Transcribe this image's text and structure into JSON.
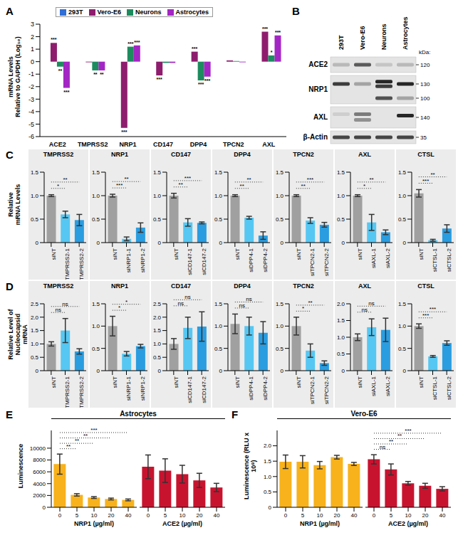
{
  "panel_labels": [
    "A",
    "B",
    "C",
    "D",
    "E",
    "F"
  ],
  "blot": {
    "lanes": [
      "293T",
      "Vero-E6",
      "Neurons",
      "Astrocytes"
    ],
    "unit": "kDa:",
    "rows": [
      {
        "label": "ACE2",
        "markers": [
          120
        ]
      },
      {
        "label": "NRP1",
        "markers": [
          130,
          100
        ]
      },
      {
        "label": "AXL",
        "markers": [
          140
        ]
      },
      {
        "label": "β-Actin",
        "markers": [
          35
        ]
      }
    ]
  },
  "chart_data": [
    {
      "type": "bar",
      "y_label": "mRNA Levels\nRelative to GAPDH (Log₁₀)",
      "legend": "top",
      "categories": [
        "ACE2",
        "TMPRSS2",
        "NRP1",
        "CD147",
        "DPP4",
        "TPCN2",
        "AXL"
      ],
      "ylim": [
        -6,
        3
      ],
      "yticks": [
        -6,
        -5,
        -4,
        -3,
        -2,
        -1,
        0,
        1,
        2,
        3
      ],
      "series": [
        {
          "name": "293T",
          "color": "#2f6fd6",
          "values": [
            0,
            0,
            0,
            0,
            0,
            0,
            0
          ],
          "significance": [
            null,
            null,
            null,
            null,
            null,
            null,
            null
          ]
        },
        {
          "name": "Vero-E6",
          "color": "#8e1d6e",
          "values": [
            1.5,
            -0.05,
            -5.3,
            -1.1,
            0.8,
            0.1,
            2.4
          ],
          "significance": [
            "***",
            null,
            "***",
            "***",
            "***",
            null,
            "***"
          ]
        },
        {
          "name": "Neurons",
          "color": "#1c8c5e",
          "values": [
            -0.4,
            -0.7,
            1.2,
            -0.1,
            -1.5,
            0.05,
            0.5
          ],
          "significance": [
            "**",
            "**",
            "***",
            null,
            "***",
            null,
            "*"
          ]
        },
        {
          "name": "Astrocytes",
          "color": "#a326c4",
          "values": [
            -2.1,
            -0.7,
            1.3,
            -0.1,
            -1.2,
            -0.05,
            2.1
          ],
          "significance": [
            "***",
            "**",
            "***",
            null,
            "***",
            null,
            "***"
          ]
        }
      ]
    },
    {
      "type": "bar",
      "title": "TMPRSS2",
      "y_label": "Relative\nmRNA Levels",
      "categories": [
        "siNT",
        "siTMPRSS2-1",
        "siTMPRSS2-2"
      ],
      "values": [
        1.0,
        0.6,
        0.48
      ],
      "errors": [
        0.02,
        0.07,
        0.12
      ],
      "colors": [
        "#a0a0a0",
        "#56c7f2",
        "#2a9de0"
      ],
      "ylim": [
        0,
        1.5
      ],
      "yticks": [
        0,
        0.5,
        {
          "value": 1,
          "label": "1.0"
        },
        1.5
      ],
      "significance": [
        {
          "from": "siNT",
          "to": "siTMPRSS2-1",
          "label": "*"
        },
        {
          "from": "siNT",
          "to": "siTMPRSS2-2",
          "label": "**"
        }
      ]
    },
    {
      "type": "bar",
      "title": "NRP1",
      "categories": [
        "siNT",
        "siNRP1-1",
        "siNRP1-2"
      ],
      "values": [
        1.0,
        0.08,
        0.32
      ],
      "errors": [
        0.03,
        0.04,
        0.1
      ],
      "colors": [
        "#a0a0a0",
        "#56c7f2",
        "#2a9de0"
      ],
      "ylim": [
        0,
        1.5
      ],
      "yticks": [
        0,
        0.5,
        {
          "value": 1,
          "label": "1.0"
        },
        1.5
      ],
      "significance": [
        {
          "from": "siNT",
          "to": "siNRP1-1",
          "label": "***"
        },
        {
          "from": "siNT",
          "to": "siNRP1-2",
          "label": "**"
        }
      ]
    },
    {
      "type": "bar",
      "title": "CD147",
      "categories": [
        "siNT",
        "siCD147-1",
        "siCD147-2"
      ],
      "values": [
        1.0,
        0.43,
        0.42
      ],
      "errors": [
        0.05,
        0.08,
        0.02
      ],
      "colors": [
        "#a0a0a0",
        "#56c7f2",
        "#2a9de0"
      ],
      "ylim": [
        0,
        1.5
      ],
      "yticks": [
        0,
        0.5,
        {
          "value": 1,
          "label": "1.0"
        },
        1.5
      ],
      "significance": [
        {
          "from": "siNT",
          "to": "siCD147-1",
          "label": "**"
        },
        {
          "from": "siNT",
          "to": "siCD147-2",
          "label": "***"
        }
      ]
    },
    {
      "type": "bar",
      "title": "DPP4",
      "categories": [
        "siNT",
        "siDPP4-1",
        "siDPP4-2"
      ],
      "values": [
        1.0,
        0.53,
        0.15
      ],
      "errors": [
        0.02,
        0.03,
        0.08
      ],
      "colors": [
        "#a0a0a0",
        "#56c7f2",
        "#2a9de0"
      ],
      "ylim": [
        0,
        1.5
      ],
      "yticks": [
        0,
        0.5,
        {
          "value": 1,
          "label": "1.0"
        },
        1.5
      ],
      "significance": [
        {
          "from": "siNT",
          "to": "siDPP4-1",
          "label": "**"
        },
        {
          "from": "siNT",
          "to": "siDPP4-2",
          "label": "**"
        }
      ]
    },
    {
      "type": "bar",
      "title": "TPCN2",
      "categories": [
        "siNT",
        "siTPCN2-1",
        "siTPCN2-2"
      ],
      "values": [
        1.0,
        0.47,
        0.38
      ],
      "errors": [
        0.02,
        0.06,
        0.05
      ],
      "colors": [
        "#a0a0a0",
        "#56c7f2",
        "#2a9de0"
      ],
      "ylim": [
        0,
        1.5
      ],
      "yticks": [
        0,
        0.5,
        {
          "value": 1,
          "label": "1.0"
        },
        1.5
      ],
      "significance": [
        {
          "from": "siNT",
          "to": "siTPCN2-1",
          "label": "**"
        },
        {
          "from": "siNT",
          "to": "siTPCN2-2",
          "label": "***"
        }
      ]
    },
    {
      "type": "bar",
      "title": "AXL",
      "categories": [
        "siNT",
        "siAXL-1",
        "siAXL-2"
      ],
      "values": [
        1.0,
        0.43,
        0.22
      ],
      "errors": [
        0.02,
        0.17,
        0.05
      ],
      "colors": [
        "#a0a0a0",
        "#56c7f2",
        "#2a9de0"
      ],
      "ylim": [
        0,
        1.5
      ],
      "yticks": [
        0,
        0.5,
        {
          "value": 1,
          "label": "1.0"
        },
        1.5
      ],
      "significance": [
        {
          "from": "siNT",
          "to": "siAXL-1",
          "label": "*"
        },
        {
          "from": "siNT",
          "to": "siAXL-2",
          "label": "**"
        }
      ]
    },
    {
      "type": "bar",
      "title": "CTSL",
      "categories": [
        "siNT",
        "siCTSL-1",
        "siCTSL-2"
      ],
      "values": [
        1.05,
        0.05,
        0.3
      ],
      "errors": [
        0.08,
        0.02,
        0.08
      ],
      "colors": [
        "#a0a0a0",
        "#56c7f2",
        "#2a9de0"
      ],
      "ylim": [
        0,
        1.5
      ],
      "yticks": [
        0,
        0.5,
        {
          "value": 1,
          "label": "1.0"
        },
        1.5
      ],
      "significance": [
        {
          "from": "siNT",
          "to": "siCTSL-1",
          "label": "***"
        },
        {
          "from": "siNT",
          "to": "siCTSL-2",
          "label": "**"
        }
      ]
    },
    {
      "type": "bar",
      "title": "TMPRSS2",
      "y_label": "Relative Level of\nNucleocapsid\nmRNA",
      "categories": [
        "siNT",
        "siTMPRSS2-1",
        "siTMPRSS2-2"
      ],
      "values": [
        1.0,
        1.5,
        0.72
      ],
      "errors": [
        0.08,
        0.45,
        0.1
      ],
      "colors": [
        "#a0a0a0",
        "#56c7f2",
        "#2a9de0"
      ],
      "ylim": [
        0,
        2.5
      ],
      "yticks": [
        0,
        0.5,
        {
          "value": 1,
          "label": "1.0"
        },
        1.5,
        {
          "value": 2,
          "label": "2.0"
        },
        2.5
      ],
      "significance": [
        {
          "from": "siNT",
          "to": "siTMPRSS2-1",
          "label": "ns"
        },
        {
          "from": "siNT",
          "to": "siTMPRSS2-2",
          "label": "ns"
        }
      ]
    },
    {
      "type": "bar",
      "title": "NRP1",
      "categories": [
        "siNT",
        "siNRP1-1",
        "siNRP1-2"
      ],
      "values": [
        1.0,
        0.38,
        0.55
      ],
      "errors": [
        0.22,
        0.05,
        0.04
      ],
      "colors": [
        "#a0a0a0",
        "#56c7f2",
        "#2a9de0"
      ],
      "ylim": [
        0,
        1.5
      ],
      "yticks": [
        0,
        0.5,
        {
          "value": 1,
          "label": "1.0"
        },
        1.5
      ],
      "significance": [
        {
          "from": "siNT",
          "to": "siNRP1-1",
          "label": "*"
        },
        {
          "from": "siNT",
          "to": "siNRP1-2",
          "label": "*"
        }
      ]
    },
    {
      "type": "bar",
      "title": "CD147",
      "categories": [
        "siNT",
        "siCD147-1",
        "siCD147-2"
      ],
      "values": [
        1.0,
        1.6,
        1.65
      ],
      "errors": [
        0.2,
        0.4,
        0.55
      ],
      "colors": [
        "#a0a0a0",
        "#56c7f2",
        "#2a9de0"
      ],
      "ylim": [
        0,
        2.5
      ],
      "yticks": [
        0,
        0.5,
        {
          "value": 1,
          "label": "1.0"
        },
        1.5,
        {
          "value": 2,
          "label": "2.0"
        },
        2.5
      ],
      "significance": [
        {
          "from": "siNT",
          "to": "siCD147-1",
          "label": "ns"
        },
        {
          "from": "siNT",
          "to": "siCD147-2",
          "label": "ns"
        }
      ]
    },
    {
      "type": "bar",
      "title": "DPP4",
      "categories": [
        "siNT",
        "siDPP4-1",
        "siDPP4-2"
      ],
      "values": [
        1.05,
        1.0,
        0.85
      ],
      "errors": [
        0.22,
        0.2,
        0.25
      ],
      "colors": [
        "#a0a0a0",
        "#56c7f2",
        "#2a9de0"
      ],
      "ylim": [
        0,
        1.5
      ],
      "yticks": [
        0,
        0.5,
        {
          "value": 1,
          "label": "1.0"
        },
        1.5
      ],
      "significance": [
        {
          "from": "siNT",
          "to": "siDPP4-1",
          "label": "ns"
        },
        {
          "from": "siNT",
          "to": "siDPP4-2",
          "label": "ns"
        }
      ]
    },
    {
      "type": "bar",
      "title": "TPCN2",
      "categories": [
        "siNT",
        "siTPCN2-1",
        "siTPCN2-2"
      ],
      "values": [
        1.0,
        0.45,
        0.17
      ],
      "errors": [
        0.2,
        0.15,
        0.05
      ],
      "colors": [
        "#a0a0a0",
        "#56c7f2",
        "#2a9de0"
      ],
      "ylim": [
        0,
        1.5
      ],
      "yticks": [
        0,
        0.5,
        {
          "value": 1,
          "label": "1.0"
        },
        1.5
      ],
      "significance": [
        {
          "from": "siNT",
          "to": "siTPCN2-1",
          "label": "*"
        },
        {
          "from": "siNT",
          "to": "siTPCN2-2",
          "label": "**"
        }
      ]
    },
    {
      "type": "bar",
      "title": "AXL",
      "categories": [
        "siNT",
        "siAXL-1",
        "siAXL-2"
      ],
      "values": [
        1.0,
        1.3,
        1.22
      ],
      "errors": [
        0.1,
        0.25,
        0.35
      ],
      "colors": [
        "#a0a0a0",
        "#56c7f2",
        "#2a9de0"
      ],
      "ylim": [
        0,
        2
      ],
      "yticks": [
        0,
        0.5,
        {
          "value": 1,
          "label": "1.0"
        },
        1.5,
        {
          "value": 2,
          "label": "2.0"
        }
      ],
      "significance": [
        {
          "from": "siNT",
          "to": "siAXL-1",
          "label": "ns"
        },
        {
          "from": "siNT",
          "to": "siAXL-2",
          "label": "ns"
        }
      ]
    },
    {
      "type": "bar",
      "title": "CTSL",
      "categories": [
        "siNT",
        "siCTSL-1",
        "siCTSL-2"
      ],
      "values": [
        1.0,
        0.32,
        0.62
      ],
      "errors": [
        0.05,
        0.02,
        0.05
      ],
      "colors": [
        "#a0a0a0",
        "#56c7f2",
        "#2a9de0"
      ],
      "ylim": [
        0,
        1.5
      ],
      "yticks": [
        0,
        0.5,
        {
          "value": 1,
          "label": "1.0"
        },
        1.5
      ],
      "significance": [
        {
          "from": "siNT",
          "to": "siCTSL-1",
          "label": "***"
        },
        {
          "from": "siNT",
          "to": "siCTSL-2",
          "label": "***"
        }
      ]
    },
    {
      "type": "bar",
      "title": "Astrocytes",
      "y_label": "Luminescence",
      "ylim": [
        0,
        13000
      ],
      "yticks": [
        0,
        2000,
        4000,
        6000,
        8000,
        10000
      ],
      "groups": [
        {
          "name": "NRP1 (µg/ml)",
          "color": "#f7b21c",
          "categories": [
            "0",
            "5",
            "10",
            "20",
            "40"
          ],
          "values": [
            7300,
            2100,
            1650,
            1400,
            1250
          ],
          "errors": [
            1700,
            200,
            150,
            150,
            150
          ],
          "significance": [
            {
              "from": "0",
              "to": "5",
              "label": "**"
            },
            {
              "from": "0",
              "to": "10",
              "label": "**"
            },
            {
              "from": "0",
              "to": "20",
              "label": "**"
            },
            {
              "from": "0",
              "to": "40",
              "label": "***"
            }
          ]
        },
        {
          "name": "ACE2 (µg/ml)",
          "color": "#c8132f",
          "categories": [
            "0",
            "5",
            "10",
            "20",
            "40"
          ],
          "values": [
            6850,
            6200,
            5600,
            4550,
            3350
          ],
          "errors": [
            2000,
            2000,
            1500,
            1200,
            700
          ],
          "significance": []
        }
      ]
    },
    {
      "type": "bar",
      "title": "Vero-E6",
      "y_label": "Luminescence (RLU x 10⁸)",
      "ylim": [
        0,
        2.5
      ],
      "yticks": [
        0,
        0.5,
        {
          "value": 1,
          "label": "1.0"
        },
        1.5,
        {
          "value": 2,
          "label": "2.0"
        }
      ],
      "groups": [
        {
          "name": "NRP1 (µg/ml)",
          "color": "#f7b21c",
          "categories": [
            "0",
            "5",
            "10",
            "20",
            "40"
          ],
          "values": [
            1.48,
            1.48,
            1.37,
            1.63,
            1.41
          ],
          "errors": [
            0.22,
            0.2,
            0.12,
            0.06,
            0.05
          ],
          "significance": []
        },
        {
          "name": "ACE2 (µg/ml)",
          "color": "#c8132f",
          "categories": [
            "0",
            "5",
            "10",
            "20",
            "40"
          ],
          "values": [
            1.56,
            1.23,
            0.78,
            0.7,
            0.6
          ],
          "errors": [
            0.15,
            0.18,
            0.06,
            0.08,
            0.07
          ],
          "significance": [
            {
              "from": "0",
              "to": "5",
              "label": "ns"
            },
            {
              "from": "0",
              "to": "10",
              "label": "**"
            },
            {
              "from": "0",
              "to": "20",
              "label": "**"
            },
            {
              "from": "0",
              "to": "40",
              "label": "***"
            }
          ]
        }
      ]
    }
  ]
}
